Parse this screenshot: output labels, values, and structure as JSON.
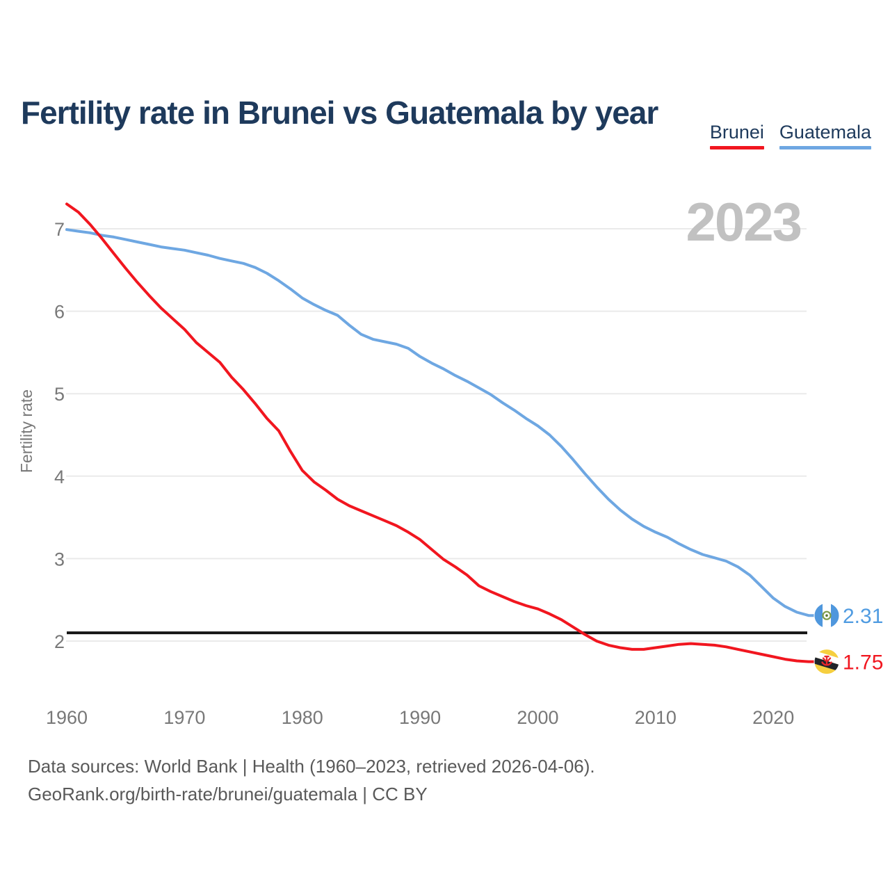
{
  "title": "Fertility rate in Brunei vs Guatemala by year",
  "watermark": "2023",
  "legend": [
    {
      "label": "Brunei",
      "color": "#f1161f"
    },
    {
      "label": "Guatemala",
      "color": "#6ea7e2"
    }
  ],
  "y_axis": {
    "title": "Fertility rate",
    "ticks": [
      7,
      6,
      5,
      4,
      3,
      2
    ]
  },
  "x_axis": {
    "ticks": [
      1960,
      1970,
      1980,
      1990,
      2000,
      2010,
      2020
    ]
  },
  "reference_line": {
    "value": 2.1,
    "color": "#161616"
  },
  "end_labels": [
    {
      "country": "Guatemala",
      "value": "2.31",
      "color": "#4f9be1"
    },
    {
      "country": "Brunei",
      "value": "1.75",
      "color": "#f1161f"
    }
  ],
  "footer": {
    "line1": "Data sources: World Bank | Health (1960–2023, retrieved 2026-04-06).",
    "line2": "GeoRank.org/birth-rate/brunei/guatemala | CC BY"
  },
  "colors": {
    "title": "#1e3a5c",
    "axis_text": "#787878",
    "footer_text": "#595959",
    "watermark": "#c1c1c1",
    "gridline": "#eaeaea"
  },
  "chart_data": {
    "type": "line",
    "title": "Fertility rate in Brunei vs Guatemala by year",
    "xlabel": "",
    "ylabel": "Fertility rate",
    "xlim": [
      1960,
      2023
    ],
    "ylim": [
      1.6,
      7.4
    ],
    "grid": "horizontal",
    "legend_position": "top-right",
    "years": [
      1960,
      1961,
      1962,
      1963,
      1964,
      1965,
      1966,
      1967,
      1968,
      1969,
      1970,
      1971,
      1972,
      1973,
      1974,
      1975,
      1976,
      1977,
      1978,
      1979,
      1980,
      1981,
      1982,
      1983,
      1984,
      1985,
      1986,
      1987,
      1988,
      1989,
      1990,
      1991,
      1992,
      1993,
      1994,
      1995,
      1996,
      1997,
      1998,
      1999,
      2000,
      2001,
      2002,
      2003,
      2004,
      2005,
      2006,
      2007,
      2008,
      2009,
      2010,
      2011,
      2012,
      2013,
      2014,
      2015,
      2016,
      2017,
      2018,
      2019,
      2020,
      2021,
      2022,
      2023
    ],
    "series": [
      {
        "name": "Brunei",
        "color": "#f1161f",
        "final_value": 1.75,
        "values": [
          7.3,
          7.2,
          7.05,
          6.88,
          6.7,
          6.52,
          6.35,
          6.19,
          6.04,
          5.91,
          5.78,
          5.62,
          5.5,
          5.38,
          5.2,
          5.05,
          4.88,
          4.7,
          4.55,
          4.3,
          4.07,
          3.93,
          3.83,
          3.72,
          3.64,
          3.58,
          3.52,
          3.46,
          3.4,
          3.32,
          3.23,
          3.11,
          2.99,
          2.9,
          2.8,
          2.67,
          2.6,
          2.54,
          2.48,
          2.43,
          2.39,
          2.33,
          2.26,
          2.17,
          2.08,
          2.0,
          1.95,
          1.92,
          1.9,
          1.9,
          1.92,
          1.94,
          1.96,
          1.97,
          1.96,
          1.95,
          1.93,
          1.9,
          1.87,
          1.84,
          1.81,
          1.78,
          1.76,
          1.75
        ]
      },
      {
        "name": "Guatemala",
        "color": "#6ea7e2",
        "final_value": 2.31,
        "values": [
          6.99,
          6.97,
          6.95,
          6.92,
          6.9,
          6.87,
          6.84,
          6.81,
          6.78,
          6.76,
          6.74,
          6.71,
          6.68,
          6.64,
          6.61,
          6.58,
          6.53,
          6.46,
          6.37,
          6.27,
          6.16,
          6.08,
          6.01,
          5.95,
          5.83,
          5.72,
          5.66,
          5.63,
          5.6,
          5.55,
          5.45,
          5.37,
          5.3,
          5.22,
          5.15,
          5.07,
          4.99,
          4.89,
          4.8,
          4.7,
          4.61,
          4.5,
          4.36,
          4.2,
          4.03,
          3.87,
          3.72,
          3.59,
          3.48,
          3.39,
          3.32,
          3.26,
          3.18,
          3.11,
          3.05,
          3.01,
          2.97,
          2.9,
          2.8,
          2.66,
          2.52,
          2.42,
          2.35,
          2.31
        ]
      }
    ]
  }
}
